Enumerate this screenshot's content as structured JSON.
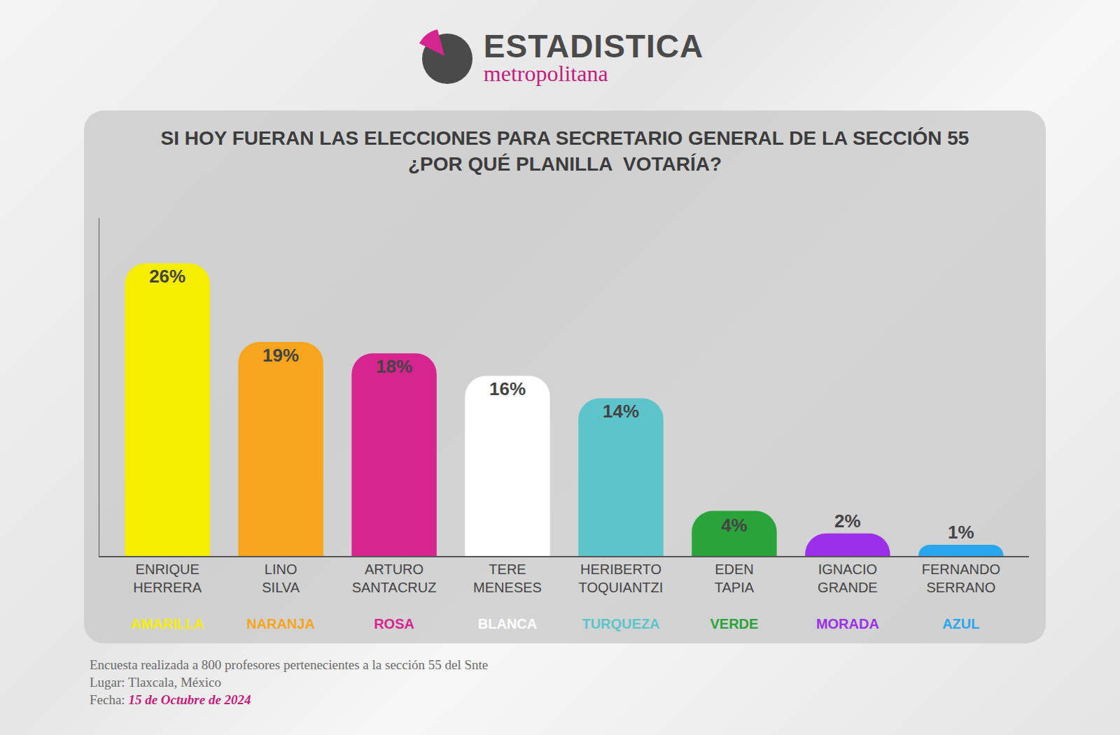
{
  "header": {
    "logo_title": "ESTADISTICA",
    "logo_subtitle": "metropolitana"
  },
  "chart_data": {
    "type": "bar",
    "title": "SI HOY FUERAN LAS ELECCIONES PARA SECRETARIO GENERAL DE LA SECCIÓN 55",
    "subtitle": "¿POR QUÉ PLANILLA  VOTARÍA?",
    "categories": [
      "ENRIQUE HERRERA",
      "LINO SILVA",
      "ARTURO SANTACRUZ",
      "TERE MENESES",
      "HERIBERTO TOQUIANTZI",
      "EDEN TAPIA",
      "IGNACIO GRANDE",
      "FERNANDO SERRANO"
    ],
    "planillas": [
      "AMARILLA",
      "NARANJA",
      "ROSA",
      "BLANCA",
      "TURQUEZA",
      "VERDE",
      "MORADA",
      "AZUL"
    ],
    "values": [
      26,
      19,
      18,
      16,
      14,
      4,
      2,
      1
    ],
    "value_labels": [
      "26%",
      "19%",
      "18%",
      "16%",
      "14%",
      "4%",
      "2%",
      "1%"
    ],
    "colors": [
      "#f6ee00",
      "#f7a51c",
      "#d6258f",
      "#ffffff",
      "#5ec4cc",
      "#2ba33b",
      "#9b30e8",
      "#2aa6ee"
    ],
    "ylim": [
      0,
      30
    ],
    "yticks": [],
    "grid": false,
    "data_labels": true,
    "tick_labels": "x"
  },
  "footer": {
    "lines": [
      "Encuesta realizada a 800 profesores pertenecientes a la sección 55 del Snte",
      "Lugar: Tlaxcala, México"
    ],
    "fecha_label": "Fecha:",
    "fecha": "15 de Octubre de 2024"
  }
}
